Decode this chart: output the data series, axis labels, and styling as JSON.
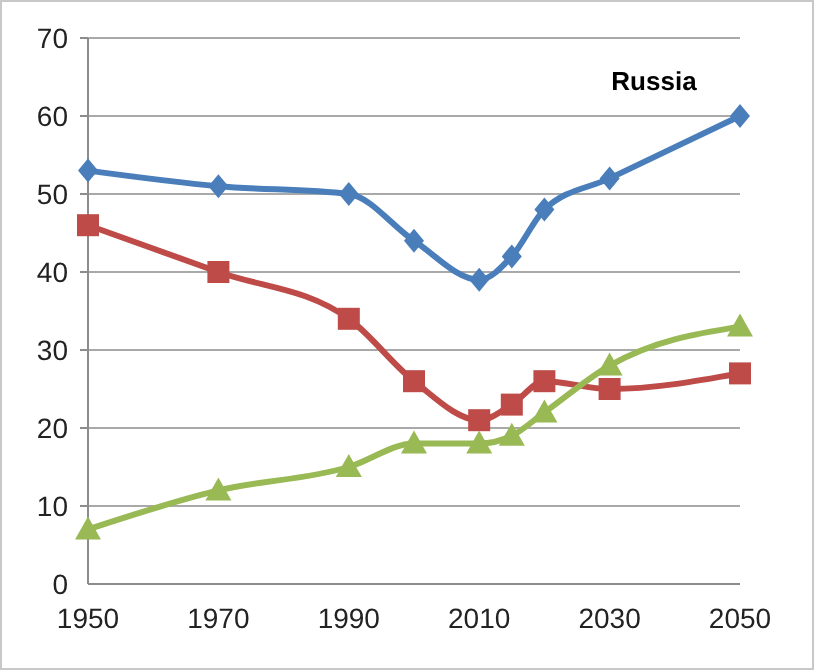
{
  "chart_data": {
    "type": "line",
    "title": "Russia",
    "x": [
      1950,
      1970,
      1990,
      2000,
      2010,
      2015,
      2020,
      2030,
      2050
    ],
    "series": [
      {
        "color": "#4a7ebb",
        "marker": "diamond",
        "values": [
          53,
          51,
          50,
          44,
          39,
          42,
          48,
          52,
          60
        ]
      },
      {
        "color": "#be4b48",
        "marker": "square",
        "values": [
          46,
          40,
          34,
          26,
          21,
          23,
          26,
          25,
          27
        ]
      },
      {
        "color": "#98b954",
        "marker": "triangle",
        "values": [
          7,
          12,
          15,
          18,
          18,
          19,
          22,
          28,
          33
        ]
      }
    ],
    "xlim": [
      1950,
      2050
    ],
    "xticks": [
      1950,
      1970,
      1990,
      2010,
      2030,
      2050
    ],
    "ylim": [
      0,
      70
    ],
    "yticks": [
      0,
      10,
      20,
      30,
      40,
      50,
      60,
      70
    ],
    "grid": "y"
  }
}
